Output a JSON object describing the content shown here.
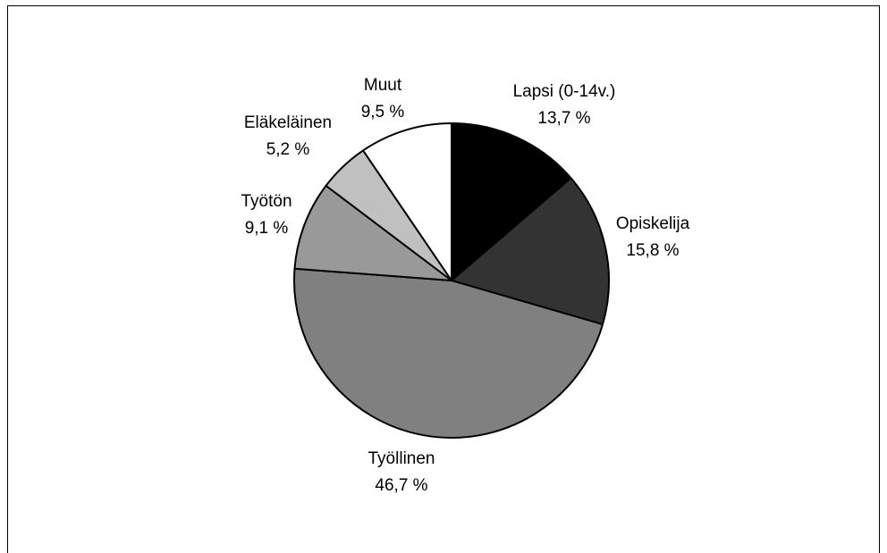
{
  "chart_data": {
    "type": "pie",
    "title": "",
    "slices": [
      {
        "label": "Lapsi (0-14v.)",
        "value_text": "13,7 %",
        "value": 13.7,
        "color": "#000000"
      },
      {
        "label": "Opiskelija",
        "value_text": "15,8 %",
        "value": 15.8,
        "color": "#333333"
      },
      {
        "label": "Työllinen",
        "value_text": "46,7 %",
        "value": 46.7,
        "color": "#808080"
      },
      {
        "label": "Työtön",
        "value_text": "9,1 %",
        "value": 9.1,
        "color": "#999999"
      },
      {
        "label": "Eläkeläinen",
        "value_text": "5,2 %",
        "value": 5.2,
        "color": "#c0c0c0"
      },
      {
        "label": "Muut",
        "value_text": "9,5 %",
        "value": 9.5,
        "color": "#ffffff"
      }
    ]
  }
}
